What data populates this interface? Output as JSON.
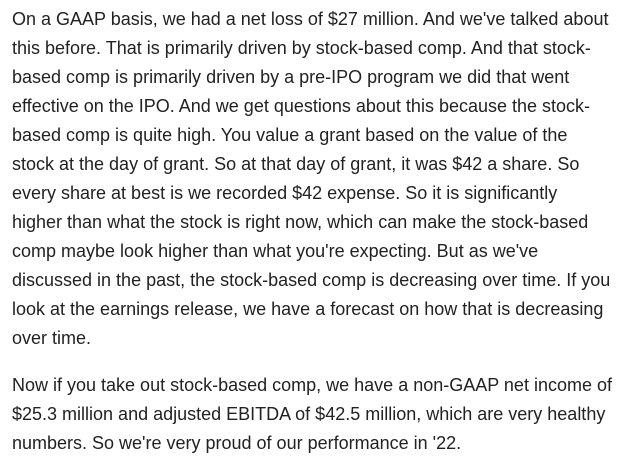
{
  "document": {
    "paragraphs": [
      {
        "lines": [
          "On a GAAP basis, we had a net loss of $27 million. And we've talked about",
          "this before. That is primarily driven by stock-based comp. And that stock-",
          "based comp is primarily driven by a pre-IPO program we did that went",
          "effective on the IPO. And we get questions about this because the stock-",
          "based comp is quite high. You value a grant based on the value of the",
          "stock at the day of grant. So at that day of grant, it was $42 a share. So",
          "every share at best is we recorded $42 expense. So it is significantly",
          "higher than what the stock is right now, which can make the stock-based",
          "comp maybe look higher than what you're expecting. But as we've",
          "discussed in the past, the stock-based comp is decreasing over time. If you",
          "look at the earnings release, we have a forecast on how that is decreasing",
          "over time."
        ]
      },
      {
        "lines": [
          "Now if you take out stock-based comp, we have a non-GAAP net income of",
          "$25.3 million and adjusted EBITDA of $42.5 million, which are very healthy",
          "numbers. So we're very proud of our performance in '22."
        ]
      }
    ]
  }
}
